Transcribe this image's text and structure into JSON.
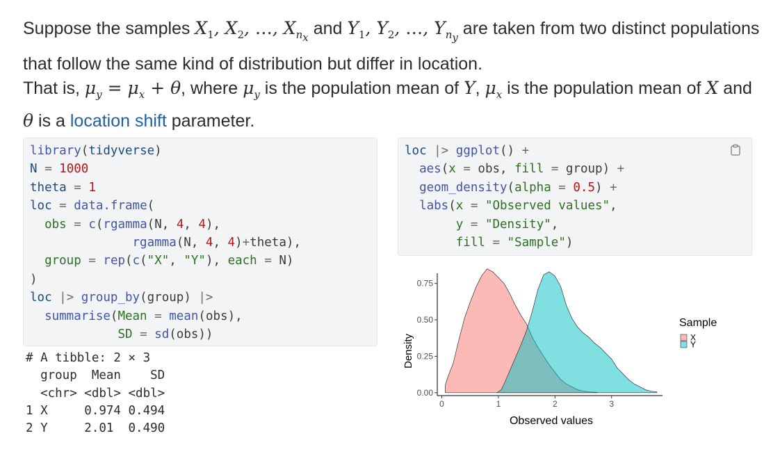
{
  "intro": {
    "p1_a": "Suppose the samples ",
    "p1_b": " and ",
    "p1_c": " are taken from two distinct populations that follow the same kind of distribution but differ in location.",
    "p2_a": "That is, ",
    "p2_b": ", where ",
    "p2_c": " is the population mean of ",
    "p2_d": ", ",
    "p2_e": " is the population mean of ",
    "p2_f": " and ",
    "p2_g": " is a ",
    "link_text": "location shift",
    "p2_h": " parameter."
  },
  "code_left": {
    "l1_fn": "library",
    "l1_arg": "tidyverse",
    "l2_var": "N",
    "l2_val": "1000",
    "l3_var": "theta",
    "l3_val": "1",
    "l4_var": "loc",
    "l4_fn": "data.frame",
    "l5_arg": "obs",
    "l5_fn1": "c",
    "l5_fn2": "rgamma",
    "l5_a1": "N",
    "l5_n1": "4",
    "l5_n2": "4",
    "l6_fn": "rgamma",
    "l6_a1": "N",
    "l6_n1": "4",
    "l6_n2": "4",
    "l6_tail": "theta",
    "l7_arg": "group",
    "l7_fn1": "rep",
    "l7_fn2": "c",
    "l7_s1": "\"X\"",
    "l7_s2": "\"Y\"",
    "l7_each": "each",
    "l7_n": "N",
    "l9_var": "loc",
    "l9_fn": "group_by",
    "l9_arg": "group",
    "l10_fn": "summarise",
    "l10_a1": "Mean",
    "l10_f1": "mean",
    "l10_v1": "obs",
    "l11_a2": "SD",
    "l11_f2": "sd",
    "l11_v2": "obs"
  },
  "output": {
    "comment": "# A tibble: 2 × 3",
    "header": "  group  Mean    SD",
    "types": "  <chr> <dbl> <dbl>",
    "row1": "1 X     0.974 0.494",
    "row2": "2 Y     2.01  0.490"
  },
  "code_right": {
    "l1_var": "loc",
    "l1_fn": "ggplot",
    "l2_fn": "aes",
    "l2_a1": "x",
    "l2_v1": "obs",
    "l2_a2": "fill",
    "l2_v2": "group",
    "l3_fn": "geom_density",
    "l3_a1": "alpha",
    "l3_v1": "0.5",
    "l4_fn": "labs",
    "l4_a1": "x",
    "l4_s1": "\"Observed values\"",
    "l5_a2": "y",
    "l5_s2": "\"Density\"",
    "l6_a3": "fill",
    "l6_s3": "\"Sample\""
  },
  "copy_icon": "clipboard-icon",
  "chart_data": {
    "type": "area",
    "xlabel": "Observed values",
    "ylabel": "Density",
    "xlim": [
      -0.08,
      3.9
    ],
    "ylim": [
      -0.02,
      0.82
    ],
    "x_ticks": [
      "0",
      "1",
      "2",
      "3"
    ],
    "y_ticks": [
      "0.00",
      "0.25",
      "0.50",
      "0.75"
    ],
    "legend_title": "Sample",
    "legend_position": "right",
    "series": [
      {
        "name": "X",
        "color": "#F8766D",
        "x": [
          0.06,
          0.1,
          0.2,
          0.3,
          0.4,
          0.5,
          0.6,
          0.7,
          0.8,
          0.9,
          1.0,
          1.1,
          1.2,
          1.3,
          1.4,
          1.5,
          1.6,
          1.7,
          1.8,
          1.9,
          2.0,
          2.1,
          2.2,
          2.3,
          2.4,
          2.5,
          2.6,
          2.75
        ],
        "y": [
          0.05,
          0.1,
          0.2,
          0.36,
          0.51,
          0.62,
          0.72,
          0.8,
          0.85,
          0.83,
          0.79,
          0.75,
          0.68,
          0.6,
          0.53,
          0.47,
          0.38,
          0.31,
          0.25,
          0.19,
          0.14,
          0.09,
          0.06,
          0.04,
          0.02,
          0.01,
          0.005,
          0.002
        ]
      },
      {
        "name": "Y",
        "color": "#00BFC4",
        "x": [
          0.98,
          1.05,
          1.1,
          1.2,
          1.3,
          1.4,
          1.5,
          1.6,
          1.7,
          1.8,
          1.9,
          2.0,
          2.1,
          2.2,
          2.3,
          2.4,
          2.5,
          2.6,
          2.7,
          2.8,
          2.9,
          3.0,
          3.1,
          3.2,
          3.3,
          3.4,
          3.5,
          3.6,
          3.7,
          3.8
        ],
        "y": [
          0.002,
          0.02,
          0.06,
          0.15,
          0.24,
          0.33,
          0.43,
          0.56,
          0.71,
          0.81,
          0.83,
          0.8,
          0.73,
          0.6,
          0.51,
          0.45,
          0.41,
          0.38,
          0.34,
          0.31,
          0.27,
          0.23,
          0.17,
          0.13,
          0.09,
          0.06,
          0.04,
          0.02,
          0.01,
          0.005
        ]
      }
    ]
  }
}
